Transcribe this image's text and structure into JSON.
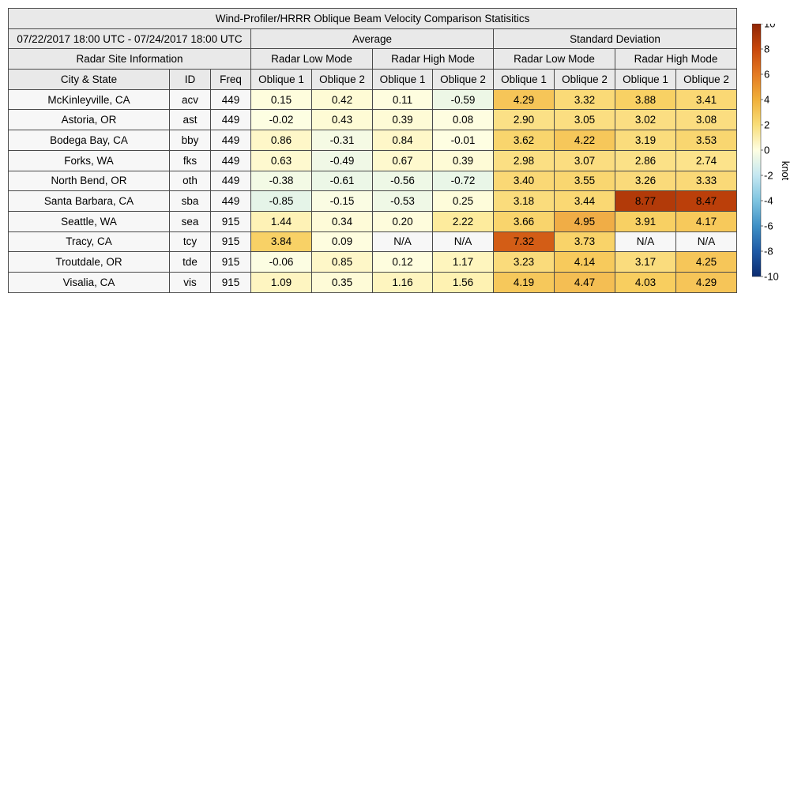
{
  "chart_data": {
    "type": "table",
    "title": "Wind-Profiler/HRRR Oblique Beam Velocity Comparison Statisitics",
    "date_range": "07/22/2017 18:00 UTC - 07/24/2017 18:00 UTC",
    "group_headers": {
      "site_info": "Radar Site Information",
      "average": "Average",
      "std_dev": "Standard Deviation",
      "low_mode": "Radar Low Mode",
      "high_mode": "Radar High Mode"
    },
    "columns": {
      "city_state": "City & State",
      "id": "ID",
      "freq": "Freq",
      "oblique1": "Oblique 1",
      "oblique2": "Oblique 2"
    },
    "value_columns": [
      "avg_low_obl1",
      "avg_low_obl2",
      "avg_high_obl1",
      "avg_high_obl2",
      "std_low_obl1",
      "std_low_obl2",
      "std_high_obl1",
      "std_high_obl2"
    ],
    "rows": [
      {
        "site": "McKinleyville, CA",
        "id": "acv",
        "freq": "449",
        "values": [
          "0.15",
          "0.42",
          "0.11",
          "-0.59",
          "4.29",
          "3.32",
          "3.88",
          "3.41"
        ]
      },
      {
        "site": "Astoria, OR",
        "id": "ast",
        "freq": "449",
        "values": [
          "-0.02",
          "0.43",
          "0.39",
          "0.08",
          "2.90",
          "3.05",
          "3.02",
          "3.08"
        ]
      },
      {
        "site": "Bodega Bay, CA",
        "id": "bby",
        "freq": "449",
        "values": [
          "0.86",
          "-0.31",
          "0.84",
          "-0.01",
          "3.62",
          "4.22",
          "3.19",
          "3.53"
        ]
      },
      {
        "site": "Forks, WA",
        "id": "fks",
        "freq": "449",
        "values": [
          "0.63",
          "-0.49",
          "0.67",
          "0.39",
          "2.98",
          "3.07",
          "2.86",
          "2.74"
        ]
      },
      {
        "site": "North Bend, OR",
        "id": "oth",
        "freq": "449",
        "values": [
          "-0.38",
          "-0.61",
          "-0.56",
          "-0.72",
          "3.40",
          "3.55",
          "3.26",
          "3.33"
        ]
      },
      {
        "site": "Santa Barbara, CA",
        "id": "sba",
        "freq": "449",
        "values": [
          "-0.85",
          "-0.15",
          "-0.53",
          "0.25",
          "3.18",
          "3.44",
          "8.77",
          "8.47"
        ]
      },
      {
        "site": "Seattle, WA",
        "id": "sea",
        "freq": "915",
        "values": [
          "1.44",
          "0.34",
          "0.20",
          "2.22",
          "3.66",
          "4.95",
          "3.91",
          "4.17"
        ]
      },
      {
        "site": "Tracy, CA",
        "id": "tcy",
        "freq": "915",
        "values": [
          "3.84",
          "0.09",
          "N/A",
          "N/A",
          "7.32",
          "3.73",
          "N/A",
          "N/A"
        ]
      },
      {
        "site": "Troutdale, OR",
        "id": "tde",
        "freq": "915",
        "values": [
          "-0.06",
          "0.85",
          "0.12",
          "1.17",
          "3.23",
          "4.14",
          "3.17",
          "4.25"
        ]
      },
      {
        "site": "Visalia, CA",
        "id": "vis",
        "freq": "915",
        "values": [
          "1.09",
          "0.35",
          "1.16",
          "1.56",
          "4.19",
          "4.47",
          "4.03",
          "4.29"
        ]
      }
    ],
    "colorbar": {
      "label": "knot",
      "range": [
        -10,
        10
      ],
      "ticks": [
        "10",
        "8",
        "6",
        "4",
        "2",
        "0",
        "-2",
        "-4",
        "-6",
        "-8",
        "-10"
      ],
      "scale": "diverging blue-white-yellow-orange-red"
    },
    "colors": {
      "header_bg": "#e9e9e9",
      "info_bg": "#f7f7f7",
      "na_bg": "#f7f7f7",
      "border": "#4a4a4a"
    }
  }
}
